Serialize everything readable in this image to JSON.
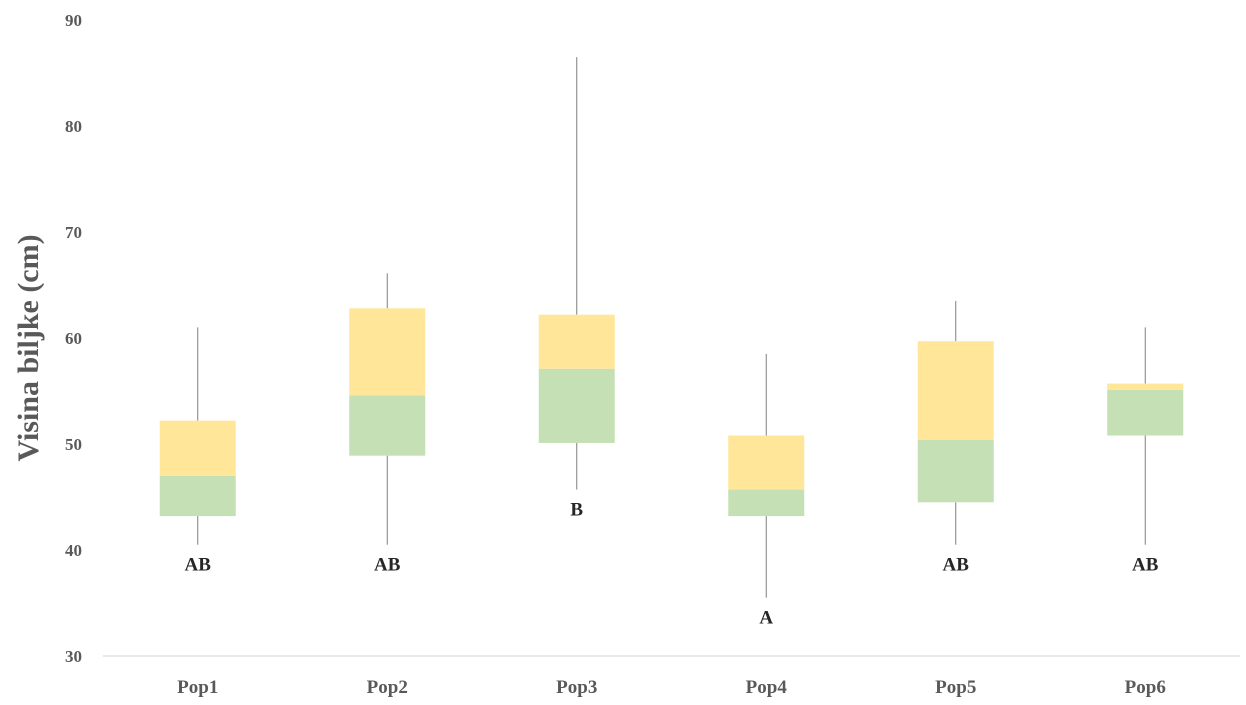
{
  "chart_data": {
    "type": "boxplot",
    "title": "",
    "xlabel": "",
    "ylabel": "Visina biljke (cm)",
    "ylim": [
      30,
      90
    ],
    "yticks": [
      30,
      40,
      50,
      60,
      70,
      80,
      90
    ],
    "categories": [
      "Pop1",
      "Pop2",
      "Pop3",
      "Pop4",
      "Pop5",
      "Pop6"
    ],
    "boxes": [
      {
        "category": "Pop1",
        "min": 40.5,
        "q1": 43.2,
        "median": 47.0,
        "q3": 52.2,
        "max": 61.0,
        "label": "AB"
      },
      {
        "category": "Pop2",
        "min": 40.5,
        "q1": 48.9,
        "median": 54.6,
        "q3": 62.8,
        "max": 66.1,
        "label": "AB"
      },
      {
        "category": "Pop3",
        "min": 45.7,
        "q1": 50.1,
        "median": 57.1,
        "q3": 62.2,
        "max": 86.5,
        "label": "B"
      },
      {
        "category": "Pop4",
        "min": 35.5,
        "q1": 43.2,
        "median": 45.7,
        "q3": 50.8,
        "max": 58.5,
        "label": "A"
      },
      {
        "category": "Pop5",
        "min": 40.5,
        "q1": 44.5,
        "median": 50.4,
        "q3": 59.7,
        "max": 63.5,
        "label": "AB"
      },
      {
        "category": "Pop6",
        "min": 40.5,
        "q1": 50.8,
        "median": 55.1,
        "q3": 55.7,
        "max": 61.0,
        "label": "AB"
      }
    ],
    "colors": {
      "lower_box": "#c5e0b4",
      "upper_box": "#ffe699",
      "whisker": "#7f7f7f",
      "axis": "#d9d9d9",
      "tick_text": "#595959",
      "label_text": "#262626"
    },
    "grid": false,
    "legend": "none"
  }
}
